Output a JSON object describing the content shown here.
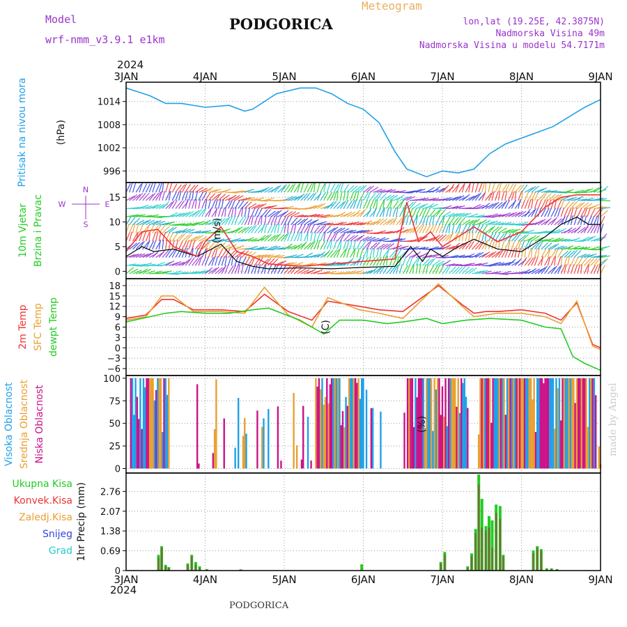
{
  "header": {
    "model_label": "Model",
    "model_name": "wrf-nmm_v3.9.1 e1km",
    "title": "PODGORICA",
    "meteogram_label": "Meteogram",
    "coords": "lon,lat (19.25E, 42.3875N)",
    "elevation": "Nadmorska Visina 49m",
    "model_elevation": "Nadmorska Visina u modelu 54.7171m",
    "year_top": "2024",
    "year_bottom": "2024",
    "footer": "PODGORICA",
    "credit": "made by Angel"
  },
  "colors": {
    "pressure": "#1fa0e8",
    "green": "#22cc22",
    "red": "#ee3333",
    "orange": "#e8a030",
    "magenta": "#cc1188",
    "blue": "#3344dd",
    "cyan": "#22cccc",
    "purple": "#9933cc",
    "grid": "#999999"
  },
  "chart_data": {
    "type": "line",
    "x_range": [
      "2024-01-03 00:00",
      "2024-01-09 00:00"
    ],
    "x_tick_labels": [
      "3JAN",
      "4JAN",
      "5JAN",
      "6JAN",
      "7JAN",
      "8JAN",
      "9JAN"
    ],
    "panels": [
      {
        "id": "pressure",
        "ylabel": [
          "Pritisak na nivou mora",
          "(hPa)"
        ],
        "yticks": [
          996,
          1002,
          1008,
          1014
        ],
        "ylim": [
          993,
          1019
        ],
        "series": [
          {
            "color": "pressure",
            "x": [
              0,
              0.15,
              0.3,
              0.5,
              0.7,
              1.0,
              1.3,
              1.5,
              1.6,
              1.9,
              2.2,
              2.4,
              2.6,
              2.8,
              3.0,
              3.2,
              3.4,
              3.55,
              3.8,
              4.0,
              4.2,
              4.4,
              4.6,
              4.8,
              5.0,
              5.2,
              5.4,
              5.6,
              5.8,
              6.0
            ],
            "y": [
              1017.5,
              1016.5,
              1015.5,
              1013.5,
              1013.5,
              1012.5,
              1013,
              1011.5,
              1012,
              1016,
              1017.5,
              1017.5,
              1016,
              1013.5,
              1012,
              1008.5,
              1001,
              996.5,
              994.5,
              996,
              995.5,
              996.5,
              1000.5,
              1003,
              1004.5,
              1006,
              1007.5,
              1010,
              1012.5,
              1014.5
            ]
          }
        ]
      },
      {
        "id": "wind",
        "ylabel": [
          "10m Vjetar",
          "Brzina i Pravac",
          "(m/s)"
        ],
        "compass": [
          "N",
          "E",
          "S",
          "W"
        ],
        "yticks": [
          0,
          5,
          10,
          15
        ],
        "ylim": [
          -1.5,
          18
        ],
        "series": [
          {
            "name": "10m wind speed",
            "color": "#000000",
            "x": [
              0,
              0.2,
              0.35,
              0.6,
              0.9,
              1.2,
              1.4,
              1.6,
              1.8,
              2.2,
              2.6,
              3.0,
              3.4,
              3.6,
              3.75,
              3.85,
              4.0,
              4.2,
              4.4,
              4.7,
              5.0,
              5.3,
              5.5,
              5.7,
              5.85,
              6.0
            ],
            "y": [
              3,
              5,
              4,
              4.5,
              3,
              5.5,
              2,
              1,
              0.5,
              0.7,
              0.5,
              0.8,
              1,
              5,
              2,
              4.5,
              3,
              5,
              6.5,
              4.5,
              4,
              7,
              9.5,
              11,
              9.5,
              9.5
            ]
          },
          {
            "name": "10m wind gust",
            "color": "red",
            "x": [
              0,
              0.2,
              0.4,
              0.6,
              0.9,
              1.0,
              1.2,
              1.4,
              1.6,
              1.8,
              2.2,
              2.6,
              3.0,
              3.4,
              3.55,
              3.7,
              3.85,
              4.0,
              4.2,
              4.4,
              4.7,
              5.0,
              5.3,
              5.5,
              5.7,
              6.0
            ],
            "y": [
              4,
              8,
              8.5,
              5,
              3,
              6,
              9,
              4,
              3,
              1.5,
              1,
              1.5,
              2,
              2.5,
              14,
              6,
              8,
              5,
              7,
              9,
              6,
              8,
              13,
              15,
              15.5,
              15.5
            ]
          }
        ]
      },
      {
        "id": "temperature",
        "ylabel": [
          "2m Temp",
          "SFC Temp",
          "dewpt Temp",
          "(C)"
        ],
        "yticks": [
          -6,
          -3,
          0,
          3,
          6,
          9,
          12,
          15,
          18
        ],
        "ylim": [
          -8,
          20
        ],
        "series": [
          {
            "name": "2m Temp",
            "color": "red",
            "x": [
              0,
              0.25,
              0.45,
              0.6,
              0.85,
              1.2,
              1.5,
              1.75,
              2.05,
              2.35,
              2.55,
              2.95,
              3.2,
              3.5,
              3.95,
              4.25,
              4.4,
              4.55,
              4.7,
              5.0,
              5.3,
              5.5,
              5.7,
              5.9,
              6.0
            ],
            "y": [
              8.5,
              9.5,
              14,
              14,
              11,
              11,
              10.5,
              15.5,
              10.5,
              8,
              13.5,
              12,
              11,
              10.5,
              18,
              12.5,
              10,
              10.5,
              10.5,
              11,
              10,
              8,
              13,
              1,
              0
            ]
          },
          {
            "name": "SFC Temp",
            "color": "orange",
            "x": [
              0,
              0.25,
              0.45,
              0.6,
              0.85,
              1.2,
              1.5,
              1.75,
              2.05,
              2.35,
              2.55,
              2.95,
              3.2,
              3.5,
              3.95,
              4.25,
              4.4,
              4.55,
              4.7,
              5.0,
              5.3,
              5.5,
              5.7,
              5.9,
              6.0
            ],
            "y": [
              8,
              9,
              15,
              15,
              10.5,
              10.5,
              10,
              17.5,
              9.5,
              6,
              14.5,
              11,
              10,
              8.5,
              18.5,
              12,
              9,
              9.5,
              10,
              10,
              9,
              7,
              13.5,
              0.5,
              -0.5
            ]
          },
          {
            "name": "dewpt Temp",
            "color": "green",
            "x": [
              0,
              0.3,
              0.5,
              0.7,
              1.0,
              1.3,
              1.6,
              1.8,
              2.2,
              2.5,
              2.7,
              3.0,
              3.3,
              3.5,
              3.8,
              4.0,
              4.3,
              4.6,
              5.0,
              5.3,
              5.5,
              5.65,
              5.8,
              6.0
            ],
            "y": [
              7.5,
              9,
              10,
              10.5,
              10,
              10,
              11,
              11.5,
              8,
              4,
              8,
              8,
              7,
              7.5,
              8.5,
              7,
              8,
              8.5,
              8,
              6,
              5.5,
              -2.5,
              -4.5,
              -6.5
            ]
          }
        ]
      },
      {
        "id": "cloud",
        "ylabel": [
          "Visoka Oblacnost",
          "Srednja Oblacnost",
          "Niska Oblacnost",
          "(%)"
        ],
        "yticks": [
          0,
          25,
          50,
          75,
          100
        ],
        "ylim": [
          -5,
          103
        ],
        "bar_layers": [
          {
            "name": "Visoka Oblacnost",
            "color": "pressure"
          },
          {
            "name": "Srednja Oblacnost",
            "color": "orange"
          },
          {
            "name": "Niska Oblacnost",
            "color": "magenta"
          }
        ]
      },
      {
        "id": "precip",
        "ylabel": [
          "1hr Precip (mm)"
        ],
        "legend": [
          "Ukupna Kisa",
          "Konvek.Kisa",
          "Zaledj.Kisa",
          "Snijeg",
          "Grad"
        ],
        "yticks": [
          0,
          0.69,
          1.38,
          2.07,
          2.76
        ],
        "ylim": [
          0,
          3.4
        ],
        "bars": [
          {
            "x": 0.41,
            "total": 0.55,
            "conv": 0.45
          },
          {
            "x": 0.45,
            "total": 0.85,
            "conv": 0.8
          },
          {
            "x": 0.5,
            "total": 0.2,
            "conv": 0.15
          },
          {
            "x": 0.54,
            "total": 0.12,
            "conv": 0.1
          },
          {
            "x": 0.78,
            "total": 0.25,
            "conv": 0.2
          },
          {
            "x": 0.83,
            "total": 0.55,
            "conv": 0.5
          },
          {
            "x": 0.88,
            "total": 0.3,
            "conv": 0.2
          },
          {
            "x": 0.93,
            "total": 0.15,
            "conv": 0.1
          },
          {
            "x": 1.02,
            "total": 0.05,
            "conv": 0.04
          },
          {
            "x": 1.45,
            "total": 0.04,
            "conv": 0.04
          },
          {
            "x": 2.98,
            "total": 0.22,
            "conv": 0.02
          },
          {
            "x": 3.98,
            "total": 0.3,
            "conv": 0.25
          },
          {
            "x": 4.03,
            "total": 0.65,
            "conv": 0.55
          },
          {
            "x": 4.32,
            "total": 0.15,
            "conv": 0.1
          },
          {
            "x": 4.37,
            "total": 0.6,
            "conv": 0.5
          },
          {
            "x": 4.42,
            "total": 1.45,
            "conv": 1.3
          },
          {
            "x": 4.46,
            "total": 3.35,
            "conv": 3.0
          },
          {
            "x": 4.5,
            "total": 2.5,
            "conv": 1.5
          },
          {
            "x": 4.55,
            "total": 1.55,
            "conv": 1.4
          },
          {
            "x": 4.59,
            "total": 1.9,
            "conv": 1.5
          },
          {
            "x": 4.63,
            "total": 1.75,
            "conv": 0.8
          },
          {
            "x": 4.68,
            "total": 2.3,
            "conv": 2.0
          },
          {
            "x": 4.73,
            "total": 2.25,
            "conv": 1.8
          },
          {
            "x": 4.77,
            "total": 0.55,
            "conv": 0.5
          },
          {
            "x": 5.15,
            "total": 0.7,
            "conv": 0.6
          },
          {
            "x": 5.2,
            "total": 0.85,
            "conv": 0.8
          },
          {
            "x": 5.25,
            "total": 0.75,
            "conv": 0.7
          },
          {
            "x": 5.32,
            "total": 0.08,
            "conv": 0.05
          },
          {
            "x": 5.38,
            "total": 0.08,
            "conv": 0.05
          },
          {
            "x": 5.45,
            "total": 0.05,
            "conv": 0.05
          }
        ]
      }
    ]
  }
}
